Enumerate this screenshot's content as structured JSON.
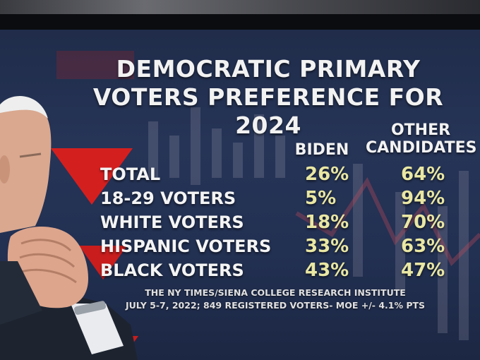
{
  "chart_data": {
    "type": "table",
    "title_lines": [
      "DEMOCRATIC PRIMARY",
      "VOTERS PREFERENCE FOR 2024"
    ],
    "columns": [
      "BIDEN",
      "OTHER CANDIDATES"
    ],
    "column_head_lines": {
      "biden": [
        "BIDEN"
      ],
      "other": [
        "OTHER",
        "CANDIDATES"
      ]
    },
    "rows": [
      {
        "label": "TOTAL",
        "biden": "26%",
        "other": "64%"
      },
      {
        "label": "18-29 VOTERS",
        "biden": "5%",
        "other": "94%"
      },
      {
        "label": "WHITE VOTERS",
        "biden": "18%",
        "other": "70%"
      },
      {
        "label": "HISPANIC VOTERS",
        "biden": "33%",
        "other": "63%"
      },
      {
        "label": "BLACK VOTERS",
        "biden": "43%",
        "other": "47%"
      }
    ],
    "source_lines": [
      "THE NY TIMES/SIENA COLLEGE RESEARCH INSTITUTE",
      "JULY 5-7, 2022; 849 REGISTERED VOTERS- MOE +/- 4.1% PTS"
    ]
  },
  "colors": {
    "background": "#223052",
    "label_text": "#f4f4f4",
    "value_text": "#e9e7a3",
    "accent_red": "#d41f1f"
  },
  "icons": {
    "background_graphic": "stock-chart-graphic",
    "portrait": "person-portrait"
  }
}
